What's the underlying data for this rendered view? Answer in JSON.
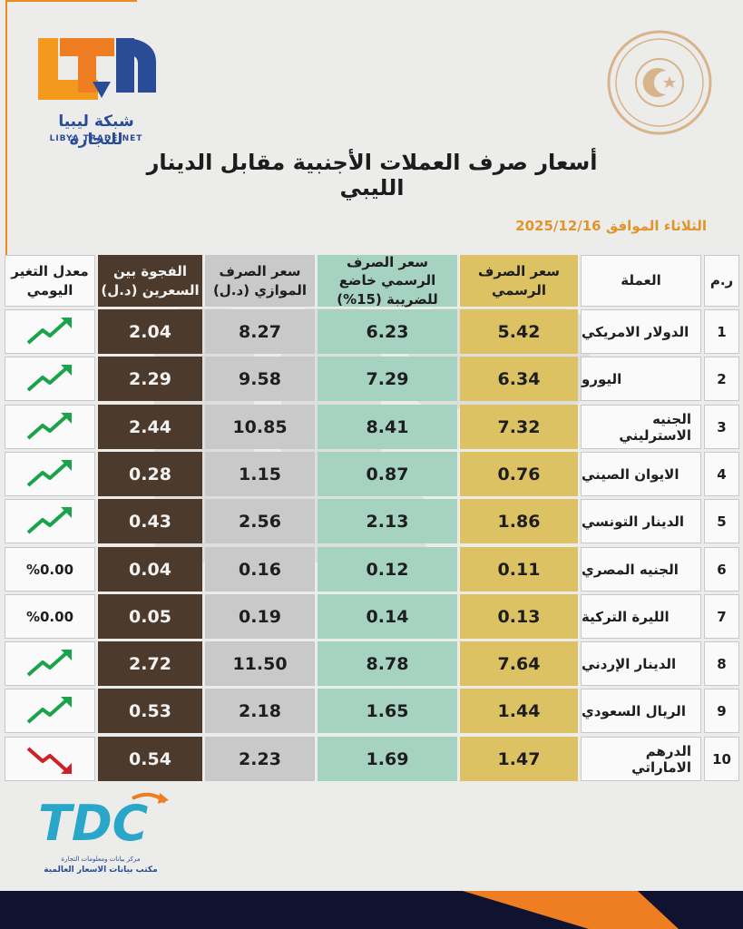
{
  "brand": {
    "name_ar": "شبكة ليبيا للتجارة",
    "name_en": "LIBYA TRADE NET",
    "colors": {
      "orange": "#f08a1e",
      "blue": "#2a4c96"
    }
  },
  "seal": {
    "icon": "government-seal-icon"
  },
  "title": "أسعار صرف العملات الأجنبية مقابل الدينار الليبي",
  "date": "الثلاثاء الموافق 2025/12/16",
  "table": {
    "headers": {
      "index": "ر.م",
      "currency": "العملة",
      "official": "سعر الصرف الرسمي",
      "official_taxed": "سعر الصرف الرسمي خاضع للضريبة (15%)",
      "parallel": "سعر الصرف الموازي (د.ل)",
      "gap": "الفجوة بين السعرين (د.ل)",
      "daily_change": "معدل التغير اليومي"
    },
    "rows": [
      {
        "index": "1",
        "currency": "الدولار الامريكي",
        "official": "5.42",
        "official_taxed": "6.23",
        "parallel": "8.27",
        "gap": "2.04",
        "trend": "up",
        "change": ""
      },
      {
        "index": "2",
        "currency": "اليورو",
        "official": "6.34",
        "official_taxed": "7.29",
        "parallel": "9.58",
        "gap": "2.29",
        "trend": "up",
        "change": ""
      },
      {
        "index": "3",
        "currency": "الجنيه الاسترليني",
        "official": "7.32",
        "official_taxed": "8.41",
        "parallel": "10.85",
        "gap": "2.44",
        "trend": "up",
        "change": ""
      },
      {
        "index": "4",
        "currency": "الايوان الصيني",
        "official": "0.76",
        "official_taxed": "0.87",
        "parallel": "1.15",
        "gap": "0.28",
        "trend": "up",
        "change": ""
      },
      {
        "index": "5",
        "currency": "الدينار التونسي",
        "official": "1.86",
        "official_taxed": "2.13",
        "parallel": "2.56",
        "gap": "0.43",
        "trend": "up",
        "change": ""
      },
      {
        "index": "6",
        "currency": "الجنيه المصري",
        "official": "0.11",
        "official_taxed": "0.12",
        "parallel": "0.16",
        "gap": "0.04",
        "trend": "flat",
        "change": "%0.00"
      },
      {
        "index": "7",
        "currency": "الليرة التركية",
        "official": "0.13",
        "official_taxed": "0.14",
        "parallel": "0.19",
        "gap": "0.05",
        "trend": "flat",
        "change": "%0.00"
      },
      {
        "index": "8",
        "currency": "الدينار الإردني",
        "official": "7.64",
        "official_taxed": "8.78",
        "parallel": "11.50",
        "gap": "2.72",
        "trend": "up",
        "change": ""
      },
      {
        "index": "9",
        "currency": "الريال السعودي",
        "official": "1.44",
        "official_taxed": "1.65",
        "parallel": "2.18",
        "gap": "0.53",
        "trend": "up",
        "change": ""
      },
      {
        "index": "10",
        "currency": "الدرهم الاماراتي",
        "official": "1.47",
        "official_taxed": "1.69",
        "parallel": "2.23",
        "gap": "0.54",
        "trend": "down",
        "change": ""
      }
    ],
    "colors": {
      "official": "#dcc262",
      "official_taxed": "#a6d2c2",
      "parallel": "#c9c9c9",
      "gap": "#4c3a2c",
      "up": "#1aa34a",
      "down": "#d01f25"
    }
  },
  "tdc": {
    "logo": "TDC",
    "line1": "مركز بيانات ومعلومات التجارة",
    "line2": "مكتب بيانات الاسعار العالمية"
  }
}
